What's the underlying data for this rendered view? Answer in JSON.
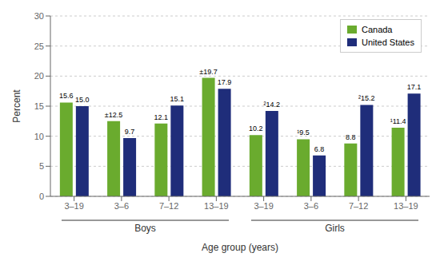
{
  "chart_data": {
    "type": "bar",
    "categories": [
      "3–19",
      "3–6",
      "7–12",
      "13–19",
      "3–19",
      "3–6",
      "7–12",
      "13–19"
    ],
    "series": [
      {
        "name": "Canada",
        "color": "#6aab2e",
        "values": [
          15.6,
          12.5,
          12.1,
          19.7,
          10.2,
          9.5,
          8.8,
          11.4
        ],
        "value_labels": [
          "15.6",
          "±12.5",
          "12.1",
          "±19.7",
          "10.2",
          "¹9.5",
          "8.8",
          "¹11.4"
        ]
      },
      {
        "name": "United States",
        "color": "#1f2d7a",
        "values": [
          15.0,
          9.7,
          15.1,
          17.9,
          14.2,
          6.8,
          15.2,
          17.1
        ],
        "value_labels": [
          "15.0",
          "9.7",
          "15.1",
          "17.9",
          "²14.2",
          "6.8",
          "²15.2",
          "17.1"
        ]
      }
    ],
    "xlabel": "Age group (years)",
    "ylabel": "Percent",
    "ylim": [
      0,
      30
    ],
    "yticks": [
      0,
      5,
      10,
      15,
      20,
      25,
      30
    ],
    "grid": true,
    "legend": "upper right",
    "data_labels": true,
    "annotations": [
      "Boys",
      "Girls"
    ]
  }
}
